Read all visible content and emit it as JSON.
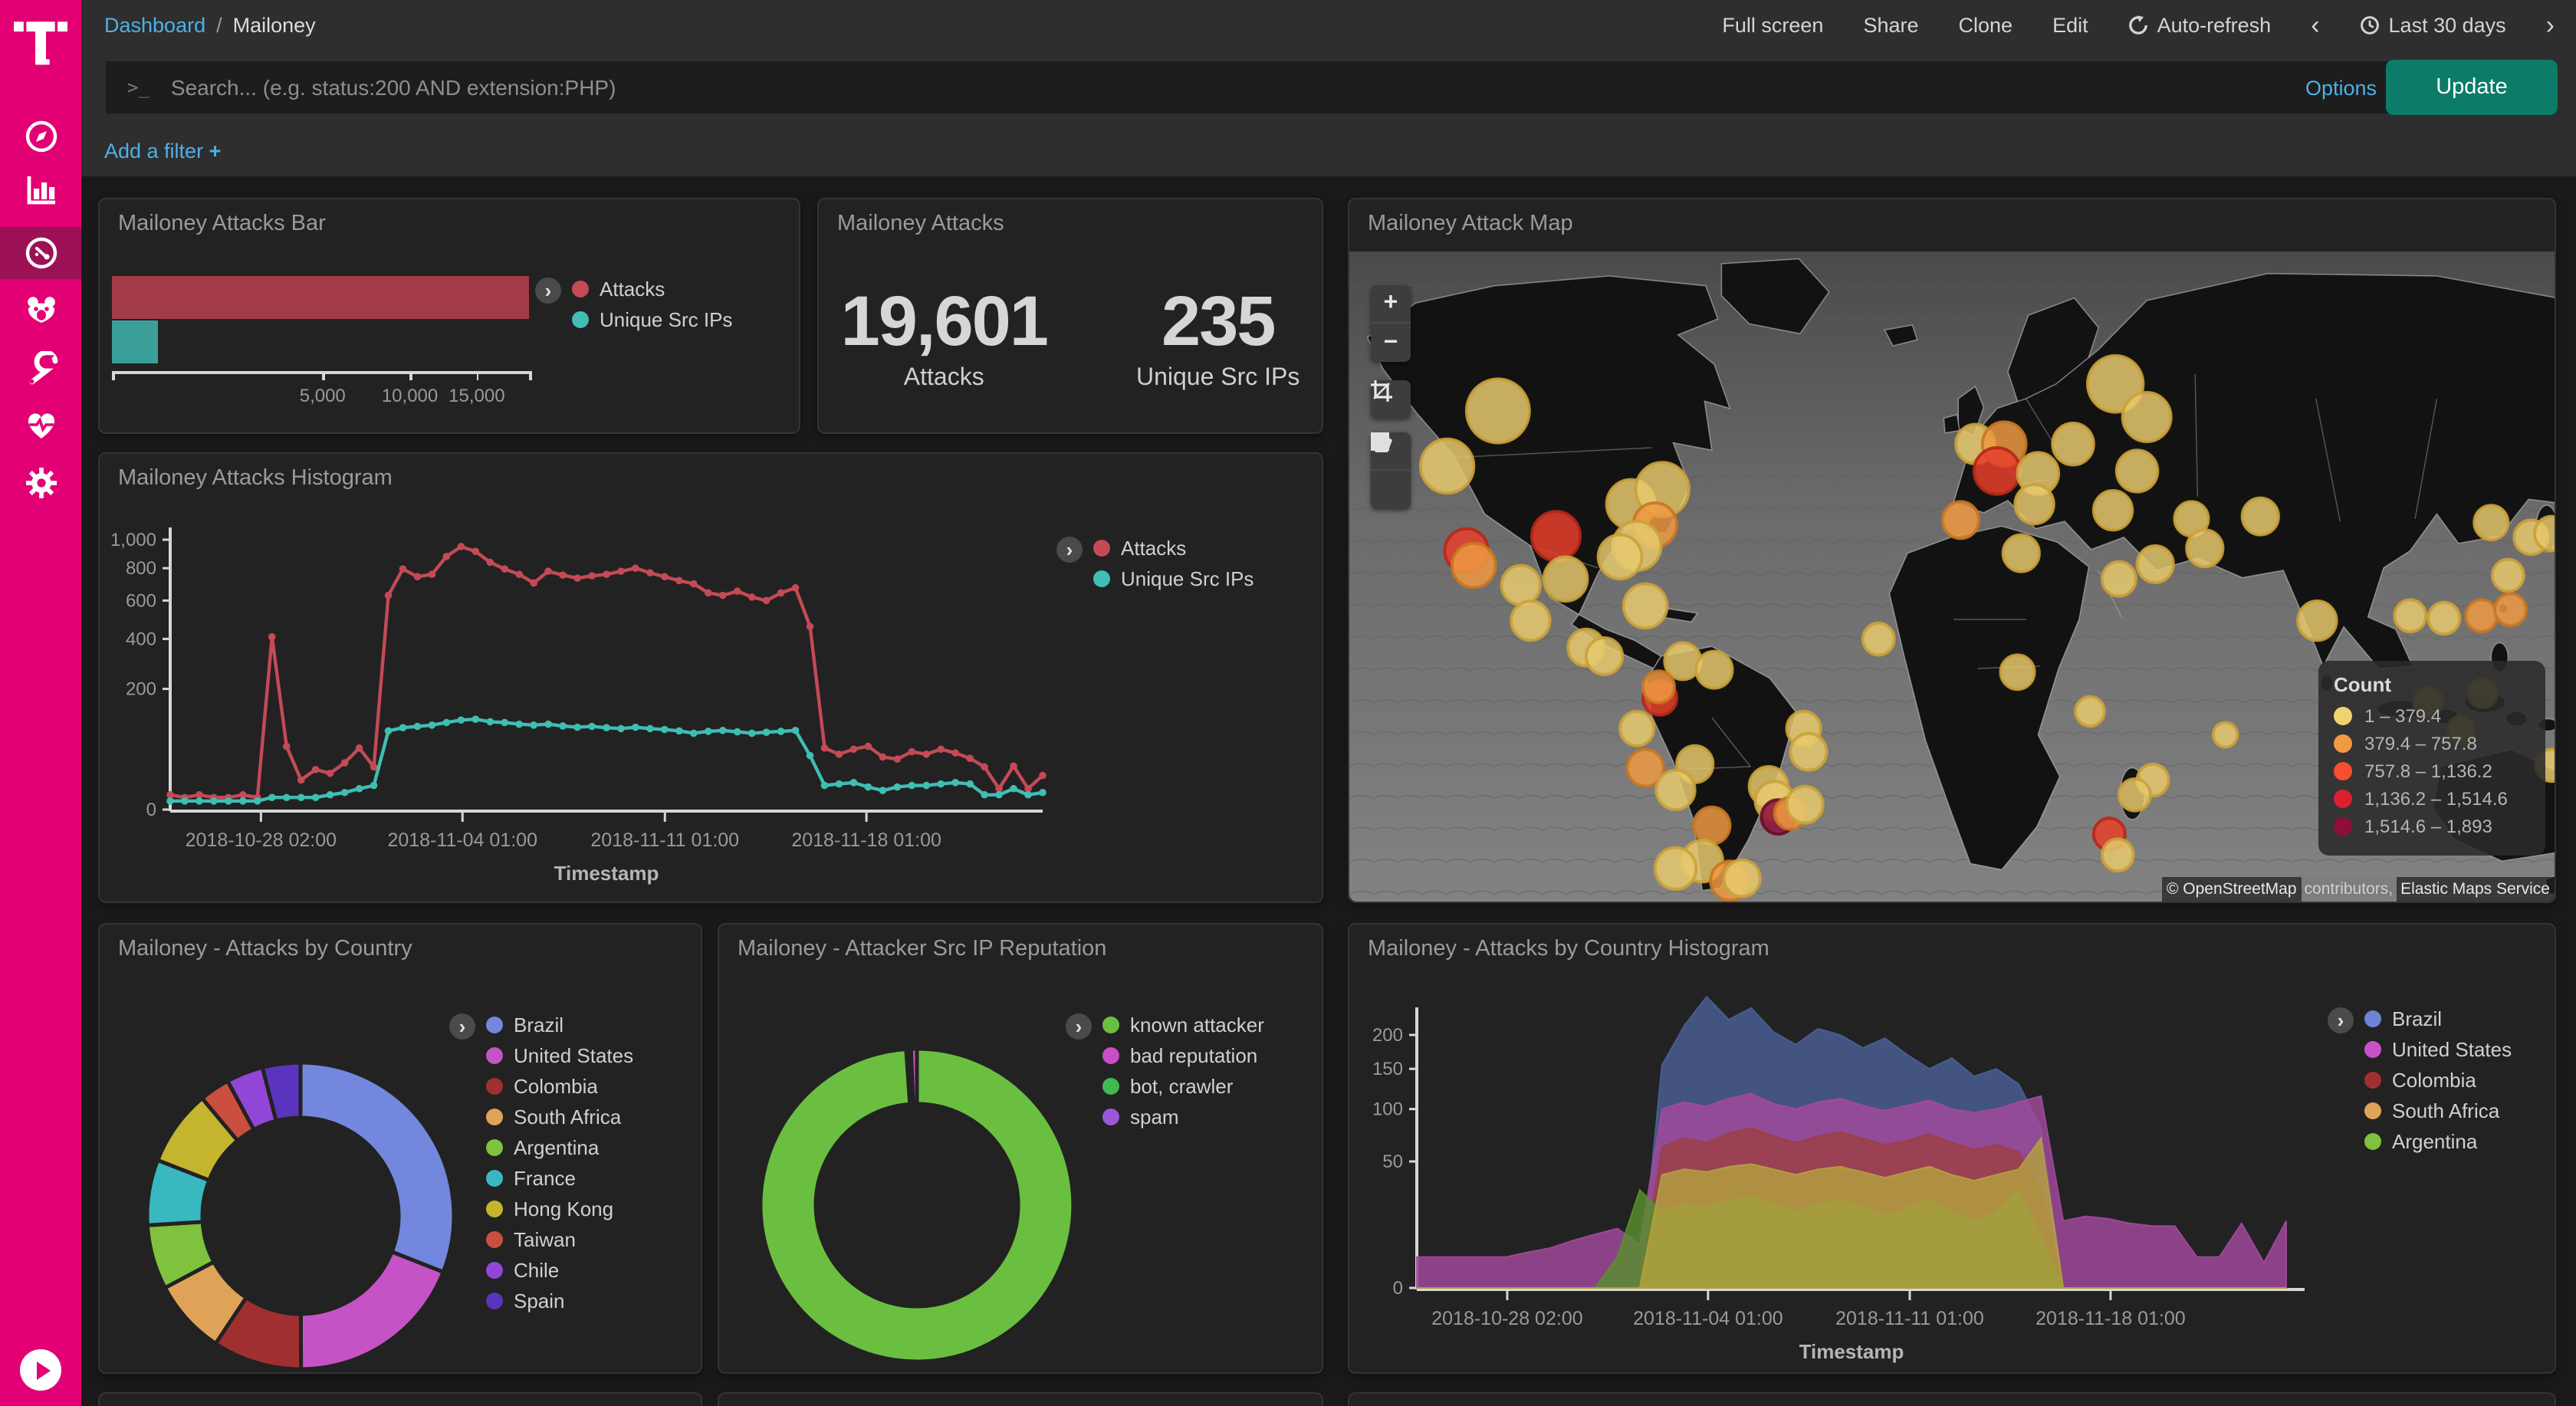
{
  "colors": {
    "brand_magenta": "#e20074",
    "brand_active": "#9c1156",
    "link_blue": "#4db1e8",
    "update_teal": "#0c7b68",
    "attacks_red_bar": "#a23b47",
    "unique_teal_bar": "#3b9f99",
    "attacks_red_line": "#c44a56",
    "unique_teal_line": "#3fbeb4"
  },
  "sidebar": {
    "icons": [
      {
        "name": "discover-compass"
      },
      {
        "name": "visualize-bar-chart"
      },
      {
        "name": "dashboard-gauge",
        "active": true
      },
      {
        "name": "tpot-bear"
      },
      {
        "name": "devtools-wrench"
      },
      {
        "name": "monitoring-heartbeat"
      },
      {
        "name": "management-gear"
      }
    ]
  },
  "topnav": {
    "breadcrumb": {
      "root": "Dashboard",
      "sep": "/",
      "current": "Mailoney"
    },
    "actions": [
      {
        "label": "Full screen"
      },
      {
        "label": "Share"
      },
      {
        "label": "Clone"
      },
      {
        "label": "Edit"
      },
      {
        "label": "Auto-refresh",
        "icon": "refresh-icon"
      }
    ],
    "time_picker": {
      "prev": "‹",
      "label": "Last 30 days",
      "next": "›",
      "icon": "clock-icon"
    }
  },
  "querybar": {
    "placeholder": "Search... (e.g. status:200 AND extension:PHP)",
    "prompt": ">_",
    "options_label": "Options",
    "update_label": "Update"
  },
  "filterbar": {
    "add_filter_label": "Add a filter",
    "plus": "+"
  },
  "bar_panel": {
    "title": "Mailoney Attacks Bar",
    "legend": [
      {
        "label": "Attacks",
        "color": "#c44a56"
      },
      {
        "label": "Unique Src IPs",
        "color": "#3fbeb4"
      }
    ],
    "chart_data": {
      "type": "bar",
      "orientation": "horizontal",
      "scale": "sqrt",
      "max": 19601,
      "series": [
        {
          "name": "Attacks",
          "value": 19601,
          "color": "#a23b47"
        },
        {
          "name": "Unique Src IPs",
          "value": 235,
          "color": "#3b9f99"
        }
      ],
      "x_ticks": [
        {
          "v": 5000,
          "label": "5,000"
        },
        {
          "v": 10000,
          "label": "10,000"
        },
        {
          "v": 15000,
          "label": "15,000"
        }
      ]
    }
  },
  "metric_panel": {
    "title": "Mailoney Attacks",
    "items": [
      {
        "value": "19,601",
        "label": "Attacks"
      },
      {
        "value": "235",
        "label": "Unique Src IPs"
      }
    ]
  },
  "map_panel": {
    "title": "Mailoney Attack Map",
    "legend_title": "Count",
    "legend": [
      {
        "label": "1 – 379.4",
        "color": "#f0d270"
      },
      {
        "label": "379.4 – 757.8",
        "color": "#f29a41"
      },
      {
        "label": "757.8 – 1,136.2",
        "color": "#f54e30"
      },
      {
        "label": "1,136.2 – 1,514.6",
        "color": "#dc1f2e"
      },
      {
        "label": "1,514.6 – 1,893",
        "color": "#8e0e38"
      }
    ],
    "attribution": [
      {
        "text": "© OpenStreetMap",
        "chip": true
      },
      {
        "text": " contributors, ",
        "chip": false
      },
      {
        "text": "Elastic Maps Service",
        "chip": true
      }
    ],
    "dot_colors": {
      "y": {
        "fill": "#e8c96d",
        "stroke": "#caa23a"
      },
      "o": {
        "fill": "#ef9a43",
        "stroke": "#c97722"
      },
      "r": {
        "fill": "#e8402c",
        "stroke": "#b5281a"
      },
      "d": {
        "fill": "#8e1038",
        "stroke": "#6a0b29"
      }
    },
    "dots": [
      [
        123,
        130,
        26,
        "y"
      ],
      [
        81,
        175,
        22,
        "y"
      ],
      [
        171,
        232,
        20,
        "r"
      ],
      [
        97,
        244,
        18,
        "r"
      ],
      [
        103,
        256,
        18,
        "o"
      ],
      [
        142,
        272,
        16,
        "y"
      ],
      [
        179,
        267,
        18,
        "y"
      ],
      [
        233,
        206,
        20,
        "y"
      ],
      [
        259,
        194,
        22,
        "y"
      ],
      [
        253,
        223,
        18,
        "o"
      ],
      [
        238,
        240,
        20,
        "y"
      ],
      [
        224,
        249,
        18,
        "y"
      ],
      [
        245,
        289,
        18,
        "y"
      ],
      [
        150,
        301,
        16,
        "y"
      ],
      [
        196,
        323,
        15,
        "y"
      ],
      [
        211,
        330,
        15,
        "y"
      ],
      [
        276,
        334,
        15,
        "y"
      ],
      [
        302,
        341,
        15,
        "y"
      ],
      [
        257,
        364,
        14,
        "r"
      ],
      [
        256,
        355,
        13,
        "o"
      ],
      [
        238,
        389,
        14,
        "y"
      ],
      [
        245,
        421,
        15,
        "o"
      ],
      [
        376,
        389,
        14,
        "y"
      ],
      [
        380,
        408,
        15,
        "y"
      ],
      [
        286,
        418,
        15,
        "y"
      ],
      [
        270,
        439,
        16,
        "y"
      ],
      [
        347,
        436,
        16,
        "y"
      ],
      [
        352,
        448,
        16,
        "y"
      ],
      [
        355,
        461,
        14,
        "d"
      ],
      [
        365,
        458,
        13,
        "o"
      ],
      [
        377,
        451,
        15,
        "y"
      ],
      [
        300,
        468,
        15,
        "o"
      ],
      [
        292,
        497,
        17,
        "y"
      ],
      [
        270,
        503,
        17,
        "y"
      ],
      [
        315,
        513,
        16,
        "o"
      ],
      [
        325,
        511,
        15,
        "y"
      ],
      [
        438,
        316,
        13,
        "y"
      ],
      [
        518,
        157,
        16,
        "y"
      ],
      [
        542,
        157,
        18,
        "o"
      ],
      [
        536,
        179,
        19,
        "r"
      ],
      [
        570,
        181,
        17,
        "y"
      ],
      [
        567,
        206,
        16,
        "y"
      ],
      [
        599,
        157,
        17,
        "y"
      ],
      [
        634,
        108,
        23,
        "y"
      ],
      [
        660,
        135,
        20,
        "y"
      ],
      [
        652,
        179,
        17,
        "y"
      ],
      [
        632,
        211,
        16,
        "y"
      ],
      [
        506,
        219,
        15,
        "o"
      ],
      [
        556,
        246,
        15,
        "y"
      ],
      [
        697,
        218,
        14,
        "y"
      ],
      [
        667,
        255,
        15,
        "y"
      ],
      [
        637,
        267,
        14,
        "y"
      ],
      [
        708,
        242,
        15,
        "y"
      ],
      [
        754,
        216,
        15,
        "y"
      ],
      [
        553,
        343,
        14,
        "y"
      ],
      [
        613,
        375,
        12,
        "y"
      ],
      [
        725,
        394,
        10,
        "y"
      ],
      [
        665,
        431,
        13,
        "y"
      ],
      [
        650,
        443,
        13,
        "y"
      ],
      [
        629,
        475,
        13,
        "r"
      ],
      [
        636,
        492,
        13,
        "y"
      ],
      [
        801,
        301,
        16,
        "y"
      ],
      [
        878,
        297,
        13,
        "y"
      ],
      [
        906,
        299,
        13,
        "y"
      ],
      [
        937,
        297,
        13,
        "o"
      ],
      [
        961,
        292,
        13,
        "o"
      ],
      [
        959,
        264,
        13,
        "y"
      ],
      [
        978,
        233,
        14,
        "y"
      ],
      [
        945,
        221,
        14,
        "y"
      ],
      [
        995,
        230,
        14,
        "y"
      ],
      [
        893,
        367,
        12,
        "y"
      ],
      [
        938,
        360,
        12,
        "y"
      ],
      [
        995,
        419,
        13,
        "y"
      ],
      [
        920,
        390,
        11,
        "y"
      ]
    ]
  },
  "hist_panel": {
    "title": "Mailoney Attacks Histogram",
    "xlabel": "Timestamp",
    "legend": [
      {
        "label": "Attacks",
        "color": "#c44a56"
      },
      {
        "label": "Unique Src IPs",
        "color": "#3fbeb4"
      }
    ],
    "chart_data": {
      "type": "line",
      "scale": "sqrt",
      "ylim": [
        0,
        1000
      ],
      "y_ticks": [
        {
          "v": 0,
          "label": "0"
        },
        {
          "v": 200,
          "label": "200"
        },
        {
          "v": 400,
          "label": "400"
        },
        {
          "v": 600,
          "label": "600"
        },
        {
          "v": 800,
          "label": "800"
        },
        {
          "v": 1000,
          "label": "1,000"
        }
      ],
      "x_ticks": [
        {
          "f": 0.104,
          "label": "2018-10-28 02:00"
        },
        {
          "f": 0.335,
          "label": "2018-11-04 01:00"
        },
        {
          "f": 0.567,
          "label": "2018-11-11 01:00"
        },
        {
          "f": 0.798,
          "label": "2018-11-18 01:00"
        }
      ],
      "series": [
        {
          "name": "Attacks",
          "color": "#c44a56",
          "values": [
            3,
            2,
            3,
            2,
            2,
            3,
            2,
            410,
            55,
            12,
            22,
            18,
            30,
            52,
            25,
            630,
            795,
            745,
            760,
            880,
            950,
            915,
            840,
            795,
            760,
            705,
            780,
            755,
            735,
            750,
            760,
            780,
            800,
            770,
            745,
            720,
            700,
            645,
            630,
            655,
            620,
            600,
            645,
            675,
            460,
            52,
            42,
            50,
            55,
            38,
            35,
            46,
            42,
            50,
            44,
            36,
            25,
            6,
            26,
            6,
            16
          ]
        },
        {
          "name": "Unique Src IPs",
          "color": "#3fbeb4",
          "values": [
            1,
            1,
            1,
            1,
            1,
            1,
            1,
            2,
            2,
            2,
            2,
            3,
            4,
            6,
            8,
            85,
            92,
            95,
            98,
            104,
            110,
            112,
            106,
            104,
            100,
            98,
            100,
            96,
            93,
            95,
            92,
            90,
            93,
            90,
            88,
            85,
            80,
            84,
            86,
            83,
            80,
            82,
            84,
            86,
            40,
            8,
            9,
            10,
            7,
            5,
            7,
            8,
            8,
            9,
            10,
            9,
            3,
            3,
            6,
            3,
            4
          ]
        }
      ]
    }
  },
  "pie_panel": {
    "title": "Mailoney - Attacks by Country",
    "legend": [
      {
        "label": "Brazil",
        "color": "#7287dd"
      },
      {
        "label": "United States",
        "color": "#c653c6"
      },
      {
        "label": "Colombia",
        "color": "#a03030"
      },
      {
        "label": "South Africa",
        "color": "#dfa358"
      },
      {
        "label": "Argentina",
        "color": "#7ec23d"
      },
      {
        "label": "France",
        "color": "#3ab8c0"
      },
      {
        "label": "Hong Kong",
        "color": "#c5b42e"
      },
      {
        "label": "Taiwan",
        "color": "#cb4f3e"
      },
      {
        "label": "Chile",
        "color": "#9146d8"
      },
      {
        "label": "Spain",
        "color": "#5b34bd"
      }
    ],
    "chart_data": {
      "type": "pie",
      "donut": true,
      "slices": [
        {
          "label": "Brazil",
          "pct": 31,
          "color": "#7287dd"
        },
        {
          "label": "United States",
          "pct": 19,
          "color": "#c653c6"
        },
        {
          "label": "Colombia",
          "pct": 9.4,
          "color": "#a03030"
        },
        {
          "label": "South Africa",
          "pct": 7.9,
          "color": "#dfa358"
        },
        {
          "label": "Argentina",
          "pct": 6.8,
          "color": "#7ec23d"
        },
        {
          "label": "France",
          "pct": 6.9,
          "color": "#3ab8c0"
        },
        {
          "label": "Hong Kong",
          "pct": 8,
          "color": "#c5b42e"
        },
        {
          "label": "Taiwan",
          "pct": 3.2,
          "color": "#cb4f3e"
        },
        {
          "label": "Chile",
          "pct": 3.9,
          "color": "#9146d8"
        },
        {
          "label": "Spain",
          "pct": 4,
          "color": "#5b34bd"
        }
      ]
    }
  },
  "donut_panel": {
    "title": "Mailoney - Attacker Src IP Reputation",
    "legend": [
      {
        "label": "known attacker",
        "color": "#6abf40"
      },
      {
        "label": "bad reputation",
        "color": "#cb4ec9"
      },
      {
        "label": "bot, crawler",
        "color": "#3fb950"
      },
      {
        "label": "spam",
        "color": "#9a58d8"
      }
    ],
    "chart_data": {
      "type": "pie",
      "donut": true,
      "slices": [
        {
          "label": "known attacker",
          "pct": 98.9,
          "color": "#6abf40"
        },
        {
          "label": "bot, crawler",
          "pct": 0.35,
          "color": "#3fb950"
        },
        {
          "label": "spam",
          "pct": 0.15,
          "color": "#9a58d8"
        },
        {
          "label": "bad reputation",
          "pct": 0.6,
          "color": "#cb4ec9"
        }
      ]
    }
  },
  "area_panel": {
    "title": "Mailoney - Attacks by Country Histogram",
    "xlabel": "Timestamp",
    "legend": [
      {
        "label": "Brazil",
        "color": "#6e83d6"
      },
      {
        "label": "United States",
        "color": "#c653c6"
      },
      {
        "label": "Colombia",
        "color": "#a03030"
      },
      {
        "label": "South Africa",
        "color": "#dfa358"
      },
      {
        "label": "Argentina",
        "color": "#7ec23d"
      }
    ],
    "chart_data": {
      "type": "area",
      "mode": "overlay",
      "scale": "sqrt",
      "ylim": [
        0,
        200
      ],
      "y_ticks": [
        {
          "v": 0,
          "label": "0"
        },
        {
          "v": 50,
          "label": "50"
        },
        {
          "v": 100,
          "label": "100"
        },
        {
          "v": 150,
          "label": "150"
        },
        {
          "v": 200,
          "label": "200"
        }
      ],
      "x_ticks": [
        {
          "f": 0.104,
          "label": "2018-10-28 02:00"
        },
        {
          "f": 0.335,
          "label": "2018-11-04 01:00"
        },
        {
          "f": 0.567,
          "label": "2018-11-11 01:00"
        },
        {
          "f": 0.798,
          "label": "2018-11-18 01:00"
        }
      ],
      "series": [
        {
          "name": "Brazil",
          "color": "#4a5f96",
          "values": [
            0,
            0,
            0,
            0,
            0,
            0,
            0,
            0,
            0,
            0,
            0,
            155,
            215,
            265,
            225,
            245,
            205,
            185,
            210,
            200,
            180,
            195,
            170,
            150,
            165,
            140,
            150,
            130,
            80,
            0,
            0,
            0,
            0,
            0,
            0,
            0,
            0,
            0,
            0,
            0
          ]
        },
        {
          "name": "United States",
          "color": "#a3499c",
          "values": [
            3,
            3,
            3,
            3,
            3,
            4,
            5,
            7,
            9,
            11,
            6,
            100,
            108,
            103,
            112,
            118,
            106,
            100,
            108,
            112,
            104,
            98,
            104,
            110,
            100,
            96,
            100,
            108,
            115,
            14,
            16,
            15,
            13,
            12,
            12,
            3,
            3,
            13,
            2,
            14
          ]
        },
        {
          "name": "Colombia",
          "color": "#9c3f44",
          "values": [
            0,
            0,
            0,
            0,
            0,
            0,
            0,
            0,
            0,
            0,
            0,
            62,
            70,
            66,
            75,
            80,
            72,
            66,
            72,
            76,
            70,
            64,
            68,
            74,
            66,
            60,
            64,
            58,
            30,
            0,
            0,
            0,
            0,
            0,
            0,
            0,
            0,
            0,
            0,
            0
          ]
        },
        {
          "name": "Argentina",
          "color": "#5a8f2e",
          "values": [
            0,
            0,
            0,
            0,
            0,
            0,
            0,
            0,
            0,
            3,
            30,
            18,
            22,
            20,
            24,
            26,
            22,
            18,
            22,
            24,
            20,
            16,
            20,
            24,
            18,
            14,
            18,
            30,
            8,
            0,
            0,
            0,
            0,
            0,
            0,
            0,
            0,
            0,
            0,
            0
          ]
        },
        {
          "name": "South Africa",
          "color": "#b3a23f",
          "values": [
            0,
            0,
            0,
            0,
            0,
            0,
            0,
            0,
            0,
            0,
            0,
            40,
            44,
            42,
            46,
            48,
            44,
            40,
            44,
            46,
            42,
            38,
            42,
            46,
            40,
            36,
            40,
            44,
            70,
            0,
            0,
            0,
            0,
            0,
            0,
            0,
            0,
            0,
            0,
            0
          ]
        }
      ]
    }
  }
}
